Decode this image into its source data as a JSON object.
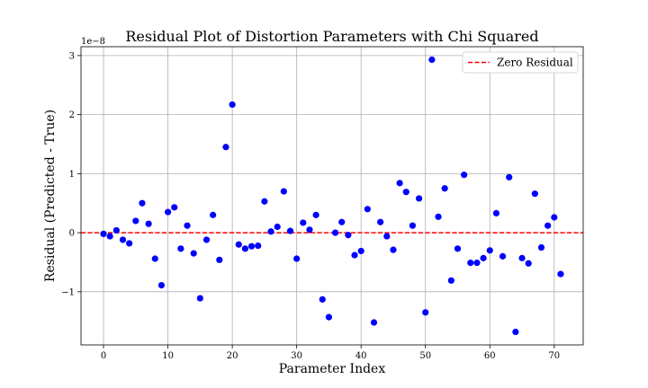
{
  "chart_data": {
    "type": "scatter",
    "title": "Residual Plot of Distortion Parameters with Chi Squared",
    "xlabel": "Parameter Index",
    "ylabel": "Residual (Predicted - True)",
    "y_scale_label": "1e−8",
    "xlim": [
      -3.5,
      74.5
    ],
    "ylim": [
      -1.9,
      3.15
    ],
    "xticks": [
      0,
      10,
      20,
      30,
      40,
      50,
      60,
      70
    ],
    "yticks": [
      -1,
      0,
      1,
      2,
      3
    ],
    "grid": true,
    "legend": {
      "position": "top-right",
      "entries": [
        "Zero Residual"
      ]
    },
    "colors": {
      "points": "#0000ff",
      "zero_line": "#ff0000"
    },
    "reference_line": {
      "name": "Zero Residual",
      "y": 0
    },
    "series": [
      {
        "x": [
          0,
          1,
          2,
          3,
          4,
          5,
          6,
          7,
          8,
          9,
          10,
          11,
          12,
          13,
          14,
          15,
          16,
          17,
          18,
          19,
          20,
          21,
          22,
          23,
          24,
          25,
          26,
          27,
          28,
          29,
          30,
          31,
          32,
          33,
          34,
          35,
          36,
          37,
          38,
          39,
          40,
          41,
          42,
          43,
          44,
          45,
          46,
          47,
          48,
          49,
          50,
          51,
          52,
          53,
          54,
          55,
          56,
          57,
          58,
          59,
          60,
          61,
          62,
          63,
          64,
          65,
          66,
          67,
          68,
          69,
          70,
          71
        ],
        "y": [
          -0.02,
          -0.06,
          0.04,
          -0.12,
          -0.18,
          0.2,
          0.5,
          0.15,
          -0.44,
          -0.89,
          0.35,
          0.43,
          -0.27,
          0.12,
          -0.35,
          -1.11,
          -0.12,
          0.3,
          -0.46,
          1.45,
          2.17,
          -0.2,
          -0.27,
          -0.23,
          -0.22,
          0.53,
          0.02,
          0.1,
          0.7,
          0.03,
          -0.44,
          0.17,
          0.05,
          0.3,
          -1.13,
          -1.43,
          0.0,
          0.18,
          -0.04,
          -0.38,
          -0.31,
          0.4,
          -1.52,
          0.18,
          -0.06,
          -0.29,
          0.84,
          0.69,
          0.12,
          0.58,
          -1.35,
          2.93,
          0.27,
          0.75,
          -0.81,
          -0.27,
          0.98,
          -0.51,
          -0.51,
          -0.43,
          -0.3,
          0.33,
          -0.4,
          0.94,
          -1.68,
          -0.43,
          -0.52,
          0.66,
          -0.25,
          0.12,
          0.26,
          -0.7
        ]
      }
    ]
  }
}
